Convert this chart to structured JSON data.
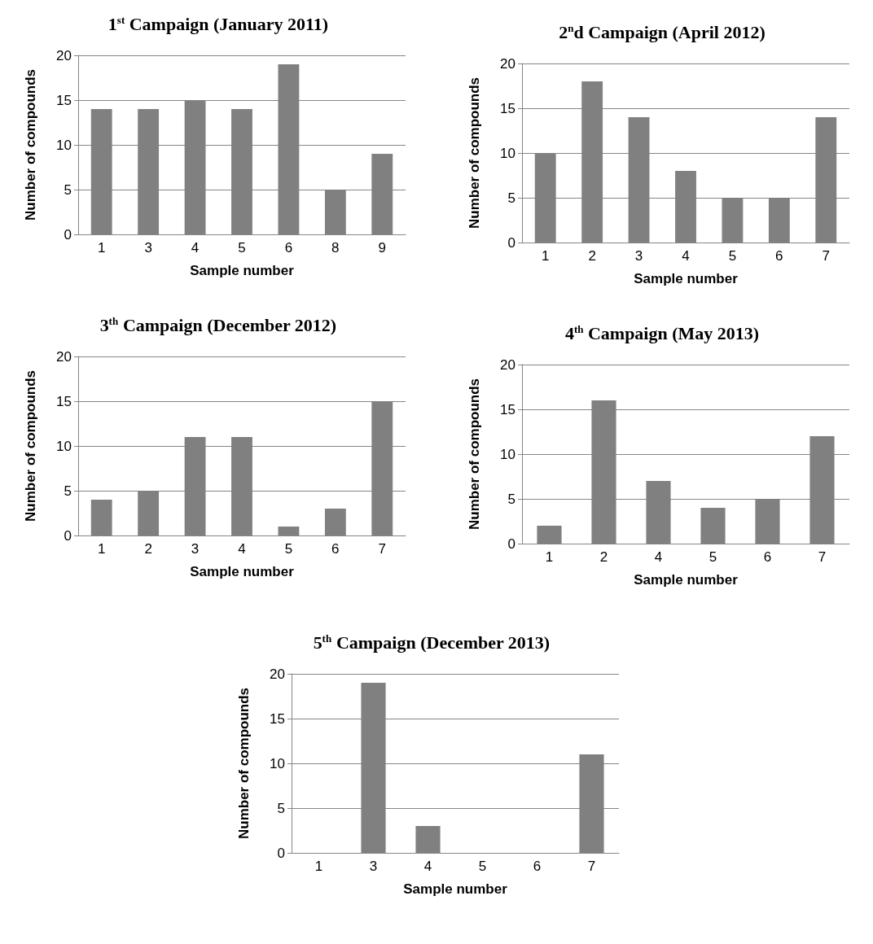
{
  "chart_data": [
    {
      "type": "bar",
      "title": "1$^{st}$ Campaign (January 2011)",
      "xlabel": "Sample number",
      "ylabel": "Number of compounds",
      "categories": [
        "1",
        "3",
        "4",
        "5",
        "6",
        "8",
        "9"
      ],
      "values": [
        14,
        14,
        15,
        14,
        19,
        5,
        9
      ],
      "color": "#808080",
      "ylim": [
        0,
        20
      ],
      "yticks": [
        0,
        5,
        10,
        15,
        20
      ],
      "grid": "y"
    },
    {
      "type": "bar",
      "title": "2$^{n}$d Campaign (April 2012)",
      "xlabel": "Sample number",
      "ylabel": "Number of compounds",
      "categories": [
        "1",
        "2",
        "3",
        "4",
        "5",
        "6",
        "7"
      ],
      "values": [
        10,
        18,
        14,
        8,
        5,
        5,
        14
      ],
      "color": "#808080",
      "ylim": [
        0,
        20
      ],
      "yticks": [
        0,
        5,
        10,
        15,
        20
      ],
      "grid": "y"
    },
    {
      "type": "bar",
      "title": "3$^{th}$ Campaign (December 2012)",
      "xlabel": "Sample number",
      "ylabel": "Number of compounds",
      "categories": [
        "1",
        "2",
        "3",
        "4",
        "5",
        "6",
        "7"
      ],
      "values": [
        4,
        5,
        11,
        11,
        1,
        3,
        15
      ],
      "color": "#808080",
      "ylim": [
        0,
        20
      ],
      "yticks": [
        0,
        5,
        10,
        15,
        20
      ],
      "grid": "y"
    },
    {
      "type": "bar",
      "title": "4$^{th}$ Campaign (May 2013)",
      "xlabel": "Sample number",
      "ylabel": "Number of compounds",
      "categories": [
        "1",
        "2",
        "4",
        "5",
        "6",
        "7"
      ],
      "values": [
        2,
        16,
        7,
        4,
        5,
        12
      ],
      "color": "#808080",
      "ylim": [
        0,
        20
      ],
      "yticks": [
        0,
        5,
        10,
        15,
        20
      ],
      "grid": "y"
    },
    {
      "type": "bar",
      "title": "5$^{th}$ Campaign (December 2013)",
      "xlabel": "Sample number",
      "ylabel": "Number of compounds",
      "categories": [
        "1",
        "3",
        "4",
        "5",
        "6",
        "7"
      ],
      "values": [
        0,
        19,
        3,
        0,
        0,
        11
      ],
      "color": "#808080",
      "ylim": [
        0,
        20
      ],
      "yticks": [
        0,
        5,
        10,
        15,
        20
      ],
      "grid": "y"
    }
  ]
}
